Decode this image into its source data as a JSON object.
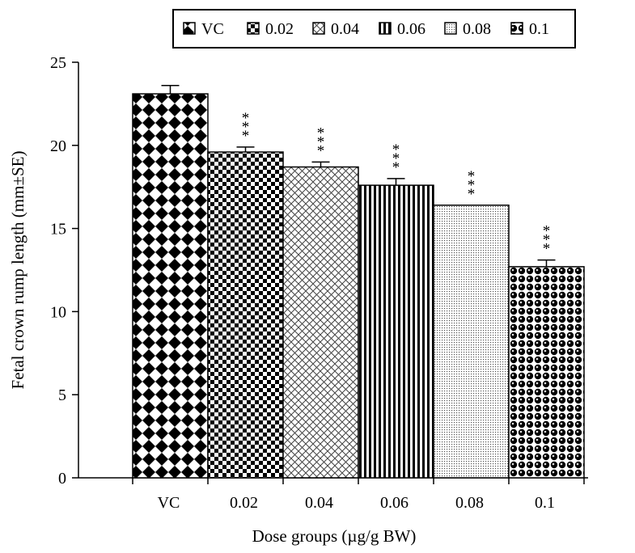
{
  "chart_data": {
    "type": "bar",
    "title": "",
    "xlabel": "Dose groups (µg/g BW)",
    "ylabel": "Fetal crown rump length (mm±SE)",
    "ylim": [
      0,
      25
    ],
    "yticks": [
      0,
      5,
      10,
      15,
      20,
      25
    ],
    "categories": [
      "VC",
      "0.02",
      "0.04",
      "0.06",
      "0.08",
      "0.1"
    ],
    "values": [
      23.1,
      19.6,
      18.7,
      17.6,
      16.4,
      12.7
    ],
    "errors": [
      0.5,
      0.3,
      0.3,
      0.4,
      0.0,
      0.4
    ],
    "annotations": [
      "",
      "***",
      "***",
      "***",
      "***",
      "***"
    ],
    "legend": {
      "placement": "top",
      "entries": [
        "VC",
        "0.02",
        "0.04",
        "0.06",
        "0.08",
        "0.1"
      ]
    },
    "grid": false
  }
}
